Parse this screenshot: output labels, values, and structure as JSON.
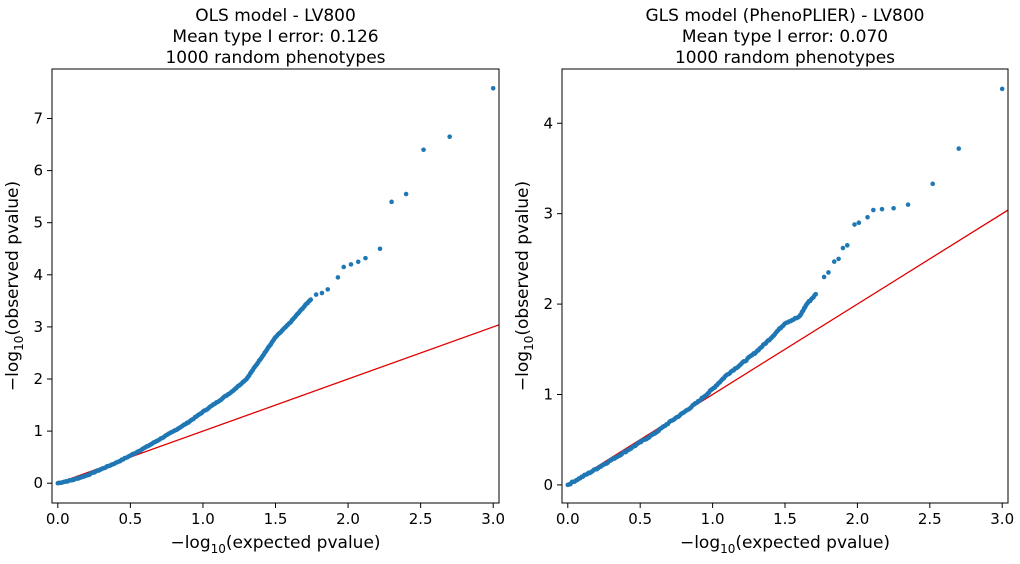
{
  "chart_data": [
    {
      "type": "scatter",
      "title": "OLS model - LV800",
      "subtitle_lines": [
        "Mean type I error: 0.126",
        "1000 random phenotypes"
      ],
      "xlabel": "expected pvalue",
      "ylabel": "observed pvalue",
      "xlabel_prefix": "−log",
      "ylabel_prefix": "−log",
      "log_base": "10",
      "xlim": [
        -0.04,
        3.04
      ],
      "ylim": [
        -0.38,
        7.95
      ],
      "xticks": [
        0.0,
        0.5,
        1.0,
        1.5,
        2.0,
        2.5,
        3.0
      ],
      "yticks": [
        0,
        1,
        2,
        3,
        4,
        5,
        6,
        7
      ],
      "reference_line": {
        "x": [
          0,
          3.04
        ],
        "y": [
          0,
          3.04
        ],
        "color": "#e00000"
      },
      "points_color": "#1f77b4",
      "qq_curve": [
        [
          0,
          0
        ],
        [
          0.1,
          0.06
        ],
        [
          0.2,
          0.15
        ],
        [
          0.3,
          0.27
        ],
        [
          0.4,
          0.39
        ],
        [
          0.5,
          0.53
        ],
        [
          0.6,
          0.68
        ],
        [
          0.7,
          0.84
        ],
        [
          0.8,
          1.0
        ],
        [
          0.9,
          1.17
        ],
        [
          1.0,
          1.37
        ],
        [
          1.1,
          1.56
        ],
        [
          1.2,
          1.76
        ],
        [
          1.3,
          2.0
        ],
        [
          1.4,
          2.4
        ],
        [
          1.5,
          2.8
        ],
        [
          1.6,
          3.08
        ],
        [
          1.7,
          3.4
        ],
        [
          1.75,
          3.55
        ]
      ],
      "outliers": [
        [
          1.78,
          3.62
        ],
        [
          1.82,
          3.65
        ],
        [
          1.86,
          3.72
        ],
        [
          1.93,
          3.95
        ],
        [
          1.97,
          4.15
        ],
        [
          2.02,
          4.2
        ],
        [
          2.07,
          4.25
        ],
        [
          2.12,
          4.32
        ],
        [
          2.22,
          4.5
        ],
        [
          2.3,
          5.4
        ],
        [
          2.4,
          5.55
        ],
        [
          2.52,
          6.4
        ],
        [
          2.7,
          6.65
        ],
        [
          3.0,
          7.58
        ]
      ]
    },
    {
      "type": "scatter",
      "title": "GLS model (PhenoPLIER) - LV800",
      "subtitle_lines": [
        "Mean type I error: 0.070",
        "1000 random phenotypes"
      ],
      "xlabel": "expected pvalue",
      "ylabel": "observed pvalue",
      "xlabel_prefix": "−log",
      "ylabel_prefix": "−log",
      "log_base": "10",
      "xlim": [
        -0.04,
        3.04
      ],
      "ylim": [
        -0.2,
        4.6
      ],
      "xticks": [
        0.0,
        0.5,
        1.0,
        1.5,
        2.0,
        2.5,
        3.0
      ],
      "yticks": [
        0,
        1,
        2,
        3,
        4
      ],
      "reference_line": {
        "x": [
          0,
          3.04
        ],
        "y": [
          0,
          3.04
        ],
        "color": "#e00000"
      },
      "points_color": "#1f77b4",
      "qq_curve": [
        [
          0,
          0
        ],
        [
          0.2,
          0.18
        ],
        [
          0.4,
          0.37
        ],
        [
          0.6,
          0.57
        ],
        [
          0.7,
          0.69
        ],
        [
          0.8,
          0.8
        ],
        [
          0.9,
          0.92
        ],
        [
          1.0,
          1.06
        ],
        [
          1.1,
          1.22
        ],
        [
          1.2,
          1.34
        ],
        [
          1.3,
          1.47
        ],
        [
          1.4,
          1.62
        ],
        [
          1.5,
          1.79
        ],
        [
          1.6,
          1.86
        ],
        [
          1.65,
          2.0
        ],
        [
          1.72,
          2.12
        ]
      ],
      "outliers": [
        [
          1.77,
          2.3
        ],
        [
          1.8,
          2.35
        ],
        [
          1.84,
          2.47
        ],
        [
          1.87,
          2.5
        ],
        [
          1.9,
          2.62
        ],
        [
          1.93,
          2.65
        ],
        [
          1.98,
          2.88
        ],
        [
          2.01,
          2.9
        ],
        [
          2.07,
          2.96
        ],
        [
          2.11,
          3.04
        ],
        [
          2.17,
          3.05
        ],
        [
          2.25,
          3.06
        ],
        [
          2.35,
          3.1
        ],
        [
          2.52,
          3.33
        ],
        [
          2.7,
          3.72
        ],
        [
          3.0,
          4.38
        ]
      ]
    }
  ]
}
